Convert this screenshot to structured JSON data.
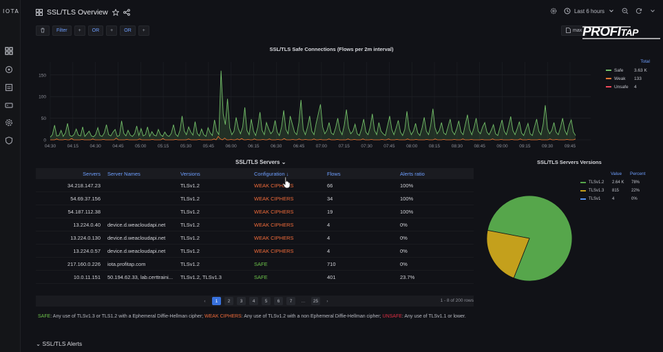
{
  "app": {
    "logo": "IOTA"
  },
  "sidebar": {
    "items": [
      {
        "name": "dashboards"
      },
      {
        "name": "explore"
      },
      {
        "name": "reports"
      },
      {
        "name": "devices"
      },
      {
        "name": "settings"
      },
      {
        "name": "security"
      }
    ]
  },
  "header": {
    "title": "SSL/TLS Overview",
    "time_range": "Last 6 hours"
  },
  "filters": {
    "filter_label": "Filter",
    "or_label_1": "OR",
    "or_label_2": "OR",
    "plus": "+",
    "max_label": "max"
  },
  "overlay_logo": {
    "text_a": "PROFI",
    "text_b": "TAP"
  },
  "chart_data": {
    "type": "line",
    "title": "SSL/TLS Safe Connections (Flows per 2m interval)",
    "yticks": [
      0,
      50,
      100,
      150
    ],
    "ylim": [
      0,
      180
    ],
    "xticks": [
      "04:30",
      "04:15",
      "04:30",
      "04:45",
      "05:00",
      "05:15",
      "05:30",
      "05:45",
      "06:00",
      "06:15",
      "06:30",
      "06:45",
      "07:00",
      "07:15",
      "07:30",
      "07:45",
      "08:00",
      "08:15",
      "08:30",
      "08:45",
      "09:00",
      "09:15",
      "09:30",
      "09:45"
    ],
    "legend_header": "Total",
    "series": [
      {
        "name": "Safe",
        "total": "3.63 K",
        "color": "#73bf69",
        "values": [
          6,
          12,
          34,
          9,
          10,
          22,
          8,
          16,
          38,
          10,
          8,
          12,
          25,
          11,
          9,
          30,
          8,
          14,
          20,
          9,
          7,
          12,
          28,
          10,
          8,
          16,
          35,
          12,
          9,
          18,
          24,
          8,
          10,
          44,
          15,
          9,
          22,
          11,
          8,
          14,
          32,
          10,
          26,
          9,
          12,
          30,
          8,
          19,
          11,
          9,
          24,
          12,
          8,
          18,
          10,
          8,
          15,
          35,
          13,
          8,
          22,
          55,
          20,
          12,
          30,
          18,
          11,
          42,
          15,
          9,
          25,
          12,
          8,
          28,
          16,
          10,
          46,
          20,
          12,
          160,
          60,
          35,
          95,
          28,
          12,
          20,
          52,
          26,
          14,
          30,
          75,
          22,
          12,
          48,
          20,
          10,
          30,
          64,
          22,
          12,
          40,
          26,
          14,
          20,
          45,
          18,
          10,
          30,
          68,
          24,
          14,
          55,
          36,
          18,
          12,
          40,
          92,
          24,
          12,
          30,
          55,
          20,
          12,
          38,
          60,
          82,
          30,
          14,
          22,
          40,
          16,
          12,
          28,
          50,
          22,
          12,
          34,
          70,
          28,
          14,
          20,
          36,
          14,
          10,
          25,
          48,
          18,
          12,
          30,
          60,
          22,
          12,
          40,
          20,
          14,
          10,
          32,
          55,
          24,
          12,
          28,
          45,
          18,
          10,
          24,
          66,
          26,
          12,
          20,
          38,
          16,
          10,
          28,
          52,
          20,
          12,
          34,
          72,
          28,
          14,
          22,
          40,
          16,
          12,
          30,
          48,
          20,
          12,
          26,
          44,
          18,
          12,
          36,
          58,
          24,
          12,
          28,
          50,
          20,
          14,
          30,
          40,
          18,
          12,
          22,
          35,
          14,
          10,
          28,
          46,
          20,
          12,
          32,
          54,
          22,
          12,
          26,
          42,
          16,
          10,
          24,
          38,
          14,
          10,
          30,
          48,
          20,
          12,
          36,
          80,
          26,
          14,
          22,
          40,
          18,
          12,
          28,
          50,
          22,
          12,
          34,
          46,
          18,
          10
        ]
      },
      {
        "name": "Weak",
        "total": "133",
        "color": "#ff7833",
        "values": [
          0,
          0,
          0,
          2,
          0,
          0,
          0,
          1,
          0,
          0,
          3,
          0,
          0,
          0,
          0,
          1,
          0,
          0,
          0,
          0,
          2,
          0,
          0,
          0,
          0,
          1,
          0,
          0,
          0,
          0,
          0,
          4,
          0,
          0,
          0,
          0,
          1,
          0,
          0,
          0,
          0,
          0,
          2,
          0,
          0,
          0,
          0,
          0,
          1,
          0,
          0,
          0,
          0,
          3,
          0,
          0,
          0,
          0,
          0,
          1,
          0,
          0,
          0,
          0,
          0,
          2,
          0,
          0,
          0,
          0,
          1,
          0,
          0,
          0,
          0,
          0,
          0,
          2,
          0,
          8,
          2,
          0,
          4,
          0,
          0,
          1,
          0,
          0,
          2,
          0,
          3,
          0,
          0,
          1,
          0,
          0,
          2,
          0,
          0,
          0,
          1,
          0,
          0,
          2,
          0,
          0,
          0,
          1,
          0,
          0,
          3,
          0,
          0,
          0,
          1,
          0,
          0,
          2,
          0,
          0,
          1,
          0,
          0,
          0,
          2,
          0,
          0,
          1,
          0,
          0,
          0,
          2,
          0,
          0,
          0,
          1,
          0,
          0,
          0,
          0,
          2,
          0,
          0,
          1,
          0,
          0,
          0,
          2,
          0,
          0,
          0,
          1,
          0,
          0,
          0,
          0,
          1,
          0,
          0,
          2,
          0,
          0,
          0,
          1,
          0,
          0,
          0,
          0,
          2,
          0,
          0,
          0,
          1,
          0,
          0,
          0,
          0,
          1,
          0,
          0,
          0,
          2,
          0,
          0,
          0,
          1,
          0,
          0,
          0,
          0,
          1,
          0,
          0,
          0,
          2,
          0,
          0,
          0,
          1,
          0,
          0,
          0,
          0,
          1,
          0,
          0,
          0,
          0,
          2,
          0,
          0,
          0,
          1,
          0,
          0,
          0,
          0,
          1,
          0,
          0,
          0,
          2,
          0,
          0,
          0,
          1,
          0,
          0,
          0,
          0,
          1,
          0,
          0,
          0,
          0,
          2,
          0,
          0,
          1,
          0,
          0,
          0,
          0,
          1,
          0,
          0,
          0,
          2
        ]
      },
      {
        "name": "Unsafe",
        "total": "4",
        "color": "#f2495c",
        "values": []
      }
    ]
  },
  "servers_table": {
    "title": "SSL/TLS Servers",
    "columns": [
      "Servers",
      "Server Names",
      "Versions",
      "Configuration",
      "Flows",
      "Alerts ratio"
    ],
    "sort_marker": "↓",
    "rows": [
      {
        "server": "34.218.147.23",
        "names": "",
        "versions": "TLSv1.2",
        "config": "WEAK CIPHERS",
        "config_class": "weak",
        "flows": "66",
        "alerts": "100%"
      },
      {
        "server": "54.69.37.156",
        "names": "",
        "versions": "TLSv1.2",
        "config": "WEAK CIPHERS",
        "config_class": "weak",
        "flows": "34",
        "alerts": "100%"
      },
      {
        "server": "54.187.112.38",
        "names": "",
        "versions": "TLSv1.2",
        "config": "WEAK CIPHERS",
        "config_class": "weak",
        "flows": "19",
        "alerts": "100%"
      },
      {
        "server": "13.224.0.40",
        "names": "device.d.weacloudapi.net",
        "versions": "TLSv1.2",
        "config": "WEAK CIPHERS",
        "config_class": "weak",
        "flows": "4",
        "alerts": "0%"
      },
      {
        "server": "13.224.0.130",
        "names": "device.d.weacloudapi.net",
        "versions": "TLSv1.2",
        "config": "WEAK CIPHERS",
        "config_class": "weak",
        "flows": "4",
        "alerts": "0%"
      },
      {
        "server": "13.224.0.57",
        "names": "device.d.weacloudapi.net",
        "versions": "TLSv1.2",
        "config": "WEAK CIPHERS",
        "config_class": "weak",
        "flows": "4",
        "alerts": "0%"
      },
      {
        "server": "217.160.0.226",
        "names": "iota.profitap.com",
        "versions": "TLSv1.2",
        "config": "SAFE",
        "config_class": "safe",
        "flows": "710",
        "alerts": "0%"
      },
      {
        "server": "10.0.11.151",
        "names": "50.194.62.33, lab.certtraini...",
        "versions": "TLSv1.2, TLSv1.3",
        "config": "SAFE",
        "config_class": "safe",
        "flows": "401",
        "alerts": "23.7%"
      }
    ],
    "pagination": {
      "pages": [
        "1",
        "2",
        "3",
        "4",
        "5",
        "6",
        "7",
        "...",
        "25"
      ],
      "prev": "‹",
      "next": "›",
      "rows_info": "1 - 8 of 200 rows"
    }
  },
  "versions_pie": {
    "title": "SSL/TLS Servers Versions",
    "header_value": "Value",
    "header_percent": "Percent",
    "slices": [
      {
        "name": "TLSv1.2",
        "value": "2.64 K",
        "percent": "78%",
        "fraction": 0.78,
        "color": "#56a64b"
      },
      {
        "name": "TLSv1.3",
        "value": "815",
        "percent": "22%",
        "fraction": 0.22,
        "color": "#c4a01c"
      },
      {
        "name": "TLSv1",
        "value": "4",
        "percent": "0%",
        "fraction": 0.0,
        "color": "#5794f2"
      }
    ]
  },
  "footnote": {
    "safe_label": "SAFE",
    "safe_text": ": Any use of TLSv1.3 or TLS1.2 with a Ephemeral Diffie-Hellman cipher; ",
    "weak_label": "WEAK CIPHERS",
    "weak_text": ": Any use of TLSv1.2 with a non Ephemeral Diffie-Hellman cipher; ",
    "unsafe_label": "UNSAFE",
    "unsafe_text": ": Any use of TLSv1.1 or lower."
  },
  "alerts_section": {
    "title": "SSL/TLS Alerts",
    "chevron": "⌄"
  }
}
